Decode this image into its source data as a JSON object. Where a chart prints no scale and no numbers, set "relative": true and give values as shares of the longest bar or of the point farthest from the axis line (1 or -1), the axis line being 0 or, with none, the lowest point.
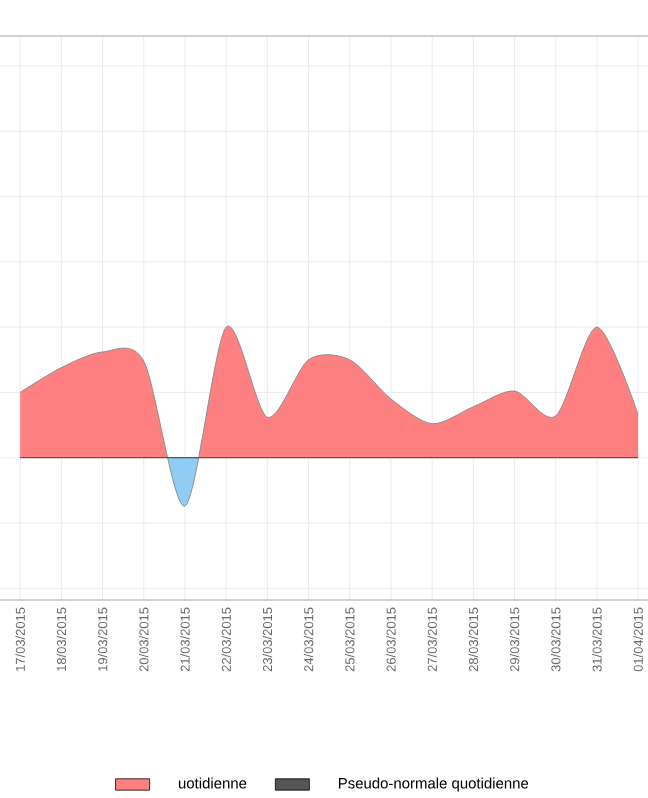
{
  "chart_data": {
    "type": "area",
    "relative": true,
    "categories": [
      "17/03/2015",
      "18/03/2015",
      "19/03/2015",
      "20/03/2015",
      "21/03/2015",
      "22/03/2015",
      "23/03/2015",
      "24/03/2015",
      "25/03/2015",
      "26/03/2015",
      "27/03/2015",
      "28/03/2015",
      "29/03/2015",
      "30/03/2015",
      "31/03/2015",
      "01/04/2015"
    ],
    "series": [
      {
        "name": "uotidienne",
        "color": "#ff8080",
        "colors": [
          "#ff8080",
          "#ff8080",
          "#ff8080",
          "#ff8080",
          "#90cdf5",
          "#ff8080",
          "#ff8080",
          "#ff8080",
          "#ff8080",
          "#ff8080",
          "#ff8080",
          "#ff8080",
          "#ff8080",
          "#ff8080",
          "#ff8080",
          "#ff8080"
        ],
        "values": [
          0.5,
          0.69,
          0.81,
          0.74,
          -0.37,
          1.0,
          0.31,
          0.75,
          0.75,
          0.45,
          0.26,
          0.39,
          0.51,
          0.32,
          1.0,
          0.33
        ]
      },
      {
        "name": "Pseudo-normale quotidienne",
        "type": "line",
        "color": "#555555",
        "values": [
          0,
          0,
          0,
          0,
          0,
          0,
          0,
          0,
          0,
          0,
          0,
          0,
          0,
          0,
          0,
          0
        ]
      }
    ],
    "grid": true,
    "legend": "bottom"
  }
}
